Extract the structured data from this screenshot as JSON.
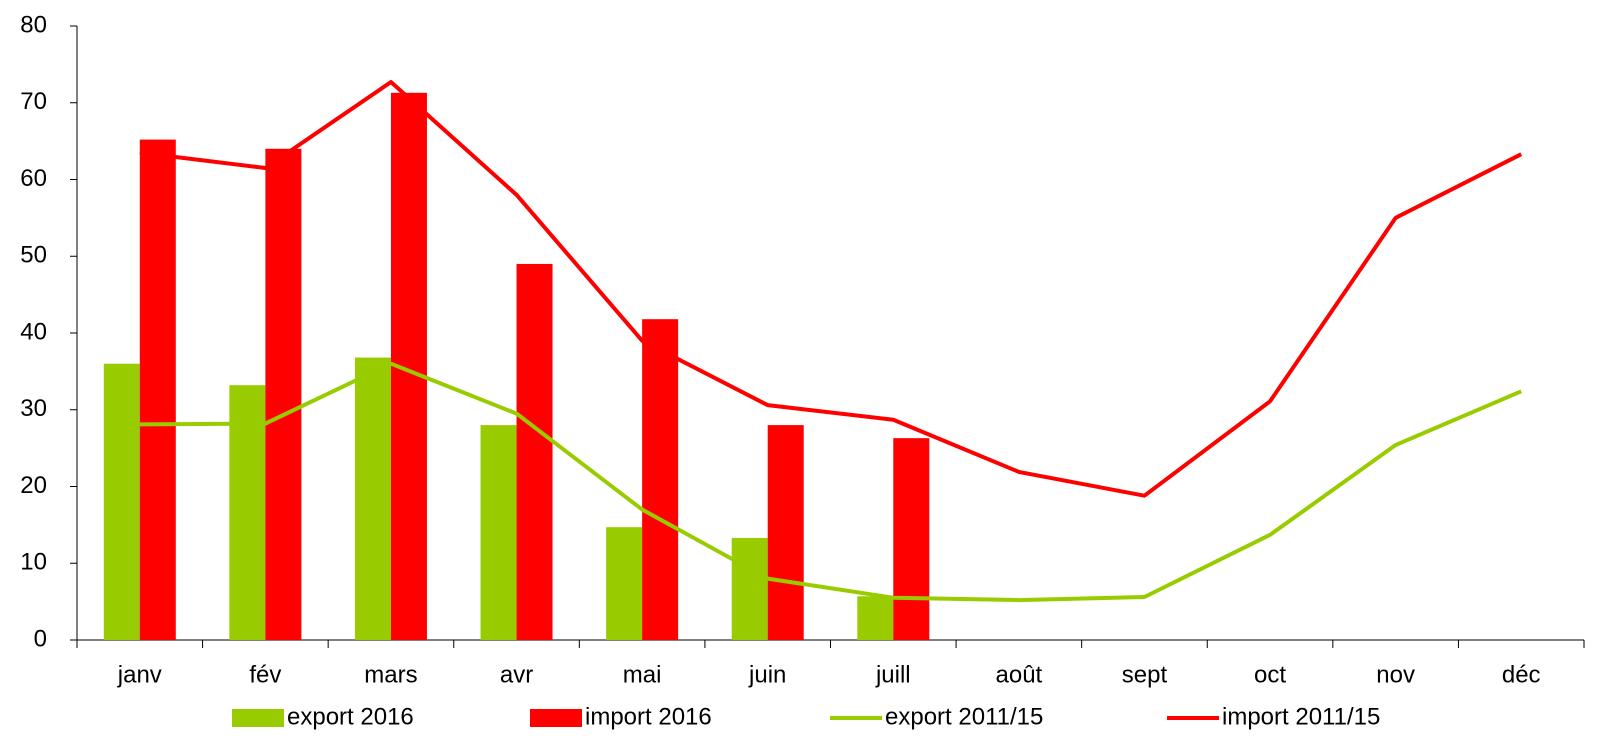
{
  "chart_data": {
    "type": "bar_line",
    "categories": [
      "janv",
      "fév",
      "mars",
      "avr",
      "mai",
      "juin",
      "juill",
      "août",
      "sept",
      "oct",
      "nov",
      "déc"
    ],
    "series": [
      {
        "name": "export 2016",
        "type": "bar",
        "color": "#99cc00",
        "values": [
          36,
          33.2,
          36.8,
          28,
          14.7,
          13.3,
          5.7,
          null,
          null,
          null,
          null,
          null
        ]
      },
      {
        "name": "import 2016",
        "type": "bar",
        "color": "#ff0000",
        "values": [
          65.2,
          64,
          71.3,
          49,
          41.8,
          28,
          26.3,
          null,
          null,
          null,
          null,
          null
        ]
      },
      {
        "name": "export 2011/15",
        "type": "line",
        "color": "#99cc00",
        "values": [
          28.1,
          28.2,
          36,
          29.5,
          17,
          8,
          5.5,
          5.2,
          5.6,
          13.7,
          25.4,
          32.4
        ]
      },
      {
        "name": "import 2011/15",
        "type": "line",
        "color": "#ff0000",
        "values": [
          63.5,
          61.5,
          72.7,
          58,
          39,
          30.6,
          28.7,
          21.9,
          18.8,
          31.1,
          55,
          63.3
        ]
      }
    ],
    "ylim": [
      0,
      80
    ],
    "yticks": [
      0,
      10,
      20,
      30,
      40,
      50,
      60,
      70,
      80
    ],
    "grid": false,
    "legend": "bottom"
  }
}
